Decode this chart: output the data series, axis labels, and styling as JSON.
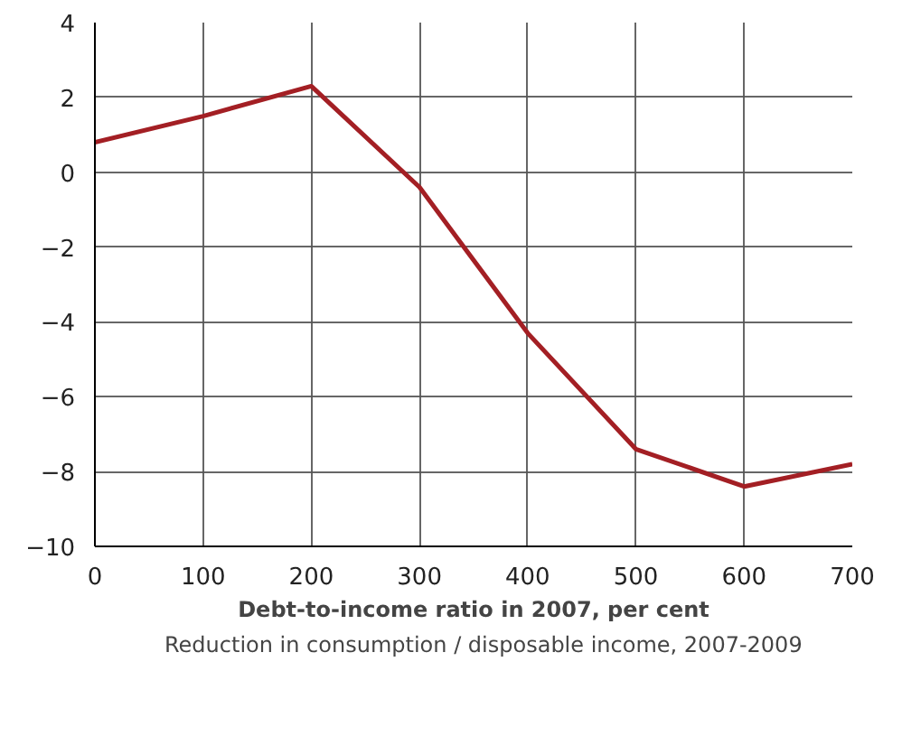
{
  "chart_data": {
    "type": "line",
    "xlabel": "Debt-to-income ratio in 2007, per cent",
    "x": [
      0,
      100,
      200,
      300,
      400,
      500,
      600,
      700
    ],
    "series": [
      {
        "name": "Reduction in consumption / disposable income, 2007-2009",
        "color": "#a31f24",
        "values": [
          0.8,
          1.5,
          2.3,
          -0.4,
          -4.3,
          -7.4,
          -8.4,
          -7.8
        ]
      }
    ],
    "xlim": [
      0,
      700
    ],
    "ylim": [
      -10,
      4
    ],
    "xticks": [
      0,
      100,
      200,
      300,
      400,
      500,
      600,
      700
    ],
    "yticks": [
      -10,
      -8,
      -6,
      -4,
      -2,
      0,
      2,
      4
    ],
    "grid": true,
    "legend": "bottom",
    "marker": "none",
    "line_style": "solid"
  }
}
